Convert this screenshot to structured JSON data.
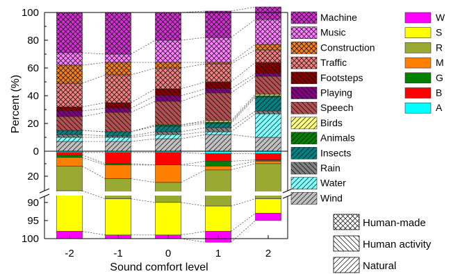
{
  "chart_data": {
    "type": "bar",
    "subtype": "stacked-diverging",
    "xlabel": "Sound comfort level",
    "ylabel": "Percent (%)",
    "categories": [
      "-2",
      "-1",
      "0",
      "1",
      "2"
    ],
    "y_upper": {
      "ylim": [
        0,
        100
      ],
      "ticks": [
        "0",
        "20",
        "40",
        "60",
        "80",
        "100"
      ]
    },
    "y_lower": {
      "direction": "down",
      "break_between": true,
      "ticks_upper": [
        "0",
        "20"
      ],
      "ticks_lower": [
        "90",
        "95",
        "100"
      ]
    },
    "upper_series": [
      {
        "name": "Wind",
        "group": "Natural",
        "color": "#c0c0c0",
        "pattern": "diag-right",
        "values": [
          7,
          7,
          9,
          12,
          10
        ]
      },
      {
        "name": "Water",
        "group": "Natural",
        "color": "#80ffff",
        "pattern": "diag-right",
        "values": [
          3,
          3,
          3,
          2,
          17
        ]
      },
      {
        "name": "Rain",
        "group": "Human activity",
        "color": "#808080",
        "pattern": "diag-left",
        "values": [
          2,
          1,
          2,
          3,
          2
        ]
      },
      {
        "name": "Insects",
        "group": "Natural",
        "color": "#008080",
        "pattern": "diag-right",
        "values": [
          3,
          3,
          4,
          3,
          10
        ]
      },
      {
        "name": "Animals",
        "group": "Natural",
        "color": "#008000",
        "pattern": "diag-right",
        "values": [
          0,
          0,
          1,
          1,
          1
        ]
      },
      {
        "name": "Birds",
        "group": "Natural",
        "color": "#ffff80",
        "pattern": "diag-right",
        "values": [
          0,
          0,
          0,
          1,
          1
        ]
      },
      {
        "name": "Speech",
        "group": "Human activity",
        "color": "#b05050",
        "pattern": "diag-left",
        "values": [
          10,
          14,
          17,
          20,
          13
        ]
      },
      {
        "name": "Playing",
        "group": "Human activity",
        "color": "#800080",
        "pattern": "diag-left",
        "values": [
          4,
          3,
          4,
          3,
          2
        ]
      },
      {
        "name": "Footsteps",
        "group": "Human activity",
        "color": "#800000",
        "pattern": "diag-left",
        "values": [
          3,
          4,
          5,
          5,
          8
        ]
      },
      {
        "name": "Traffic",
        "group": "Human-made",
        "color": "#f08080",
        "pattern": "cross",
        "values": [
          17,
          20,
          15,
          13,
          9
        ]
      },
      {
        "name": "Construction",
        "group": "Human-made",
        "color": "#f08020",
        "pattern": "cross",
        "values": [
          13,
          9,
          4,
          1,
          4
        ]
      },
      {
        "name": "Music",
        "group": "Human-made",
        "color": "#ff80ff",
        "pattern": "cross",
        "values": [
          9,
          6,
          16,
          18,
          18
        ]
      },
      {
        "name": "Machine",
        "group": "Human-made",
        "color": "#d030d0",
        "pattern": "cross",
        "values": [
          29,
          30,
          20,
          19,
          9
        ]
      }
    ],
    "lower_series": [
      {
        "name": "A",
        "color": "#00ffff",
        "values": [
          1,
          1,
          1,
          2,
          2
        ]
      },
      {
        "name": "B",
        "color": "#ff0000",
        "values": [
          2,
          9,
          10,
          6,
          5
        ]
      },
      {
        "name": "G",
        "color": "#008000",
        "values": [
          2,
          1,
          0,
          4,
          1
        ]
      },
      {
        "name": "M",
        "color": "#ff8000",
        "values": [
          7,
          11,
          14,
          3,
          2
        ]
      },
      {
        "name": "R",
        "color": "#99aa33",
        "values": [
          75,
          67,
          65,
          76,
          79
        ]
      },
      {
        "name": "S",
        "color": "#ffff00",
        "values": [
          11,
          10,
          9,
          7,
          4
        ]
      },
      {
        "name": "W",
        "color": "#ff00ff",
        "values": [
          2,
          1,
          1,
          3,
          2
        ]
      }
    ],
    "legend_groups": [
      "Human-made",
      "Human activity",
      "Natural"
    ]
  }
}
